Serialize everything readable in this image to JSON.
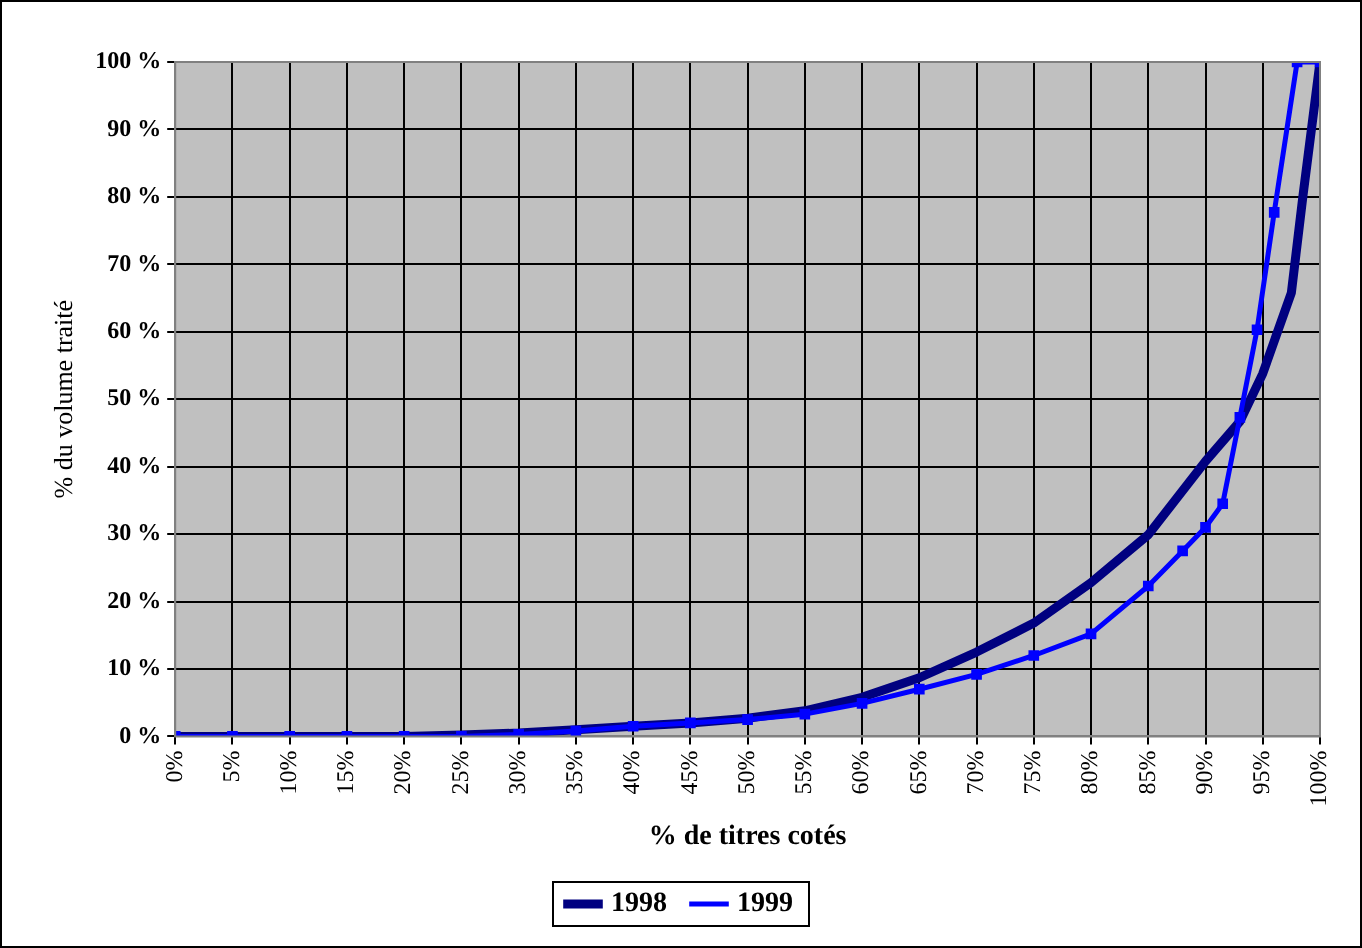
{
  "chart_data": {
    "type": "line",
    "xlabel": "% de titres cotés",
    "ylabel": "% du volume traité",
    "xlim": [
      0,
      100
    ],
    "ylim": [
      0,
      100
    ],
    "xticks": [
      {
        "value": 0,
        "label": "0%"
      },
      {
        "value": 5,
        "label": "5%"
      },
      {
        "value": 10,
        "label": "10%"
      },
      {
        "value": 15,
        "label": "15%"
      },
      {
        "value": 20,
        "label": "20%"
      },
      {
        "value": 25,
        "label": "25%"
      },
      {
        "value": 30,
        "label": "30%"
      },
      {
        "value": 35,
        "label": "35%"
      },
      {
        "value": 40,
        "label": "40%"
      },
      {
        "value": 45,
        "label": "45%"
      },
      {
        "value": 50,
        "label": "50%"
      },
      {
        "value": 55,
        "label": "55%"
      },
      {
        "value": 60,
        "label": "60%"
      },
      {
        "value": 65,
        "label": "65%"
      },
      {
        "value": 70,
        "label": "70%"
      },
      {
        "value": 75,
        "label": "75%"
      },
      {
        "value": 80,
        "label": "80%"
      },
      {
        "value": 85,
        "label": "85%"
      },
      {
        "value": 90,
        "label": "90%"
      },
      {
        "value": 95,
        "label": "95%"
      },
      {
        "value": 100,
        "label": "100%"
      }
    ],
    "yticks": [
      {
        "value": 0,
        "label": "0 %"
      },
      {
        "value": 10,
        "label": "10 %"
      },
      {
        "value": 20,
        "label": "20 %"
      },
      {
        "value": 30,
        "label": "30 %"
      },
      {
        "value": 40,
        "label": "40 %"
      },
      {
        "value": 50,
        "label": "50 %"
      },
      {
        "value": 60,
        "label": "60 %"
      },
      {
        "value": 70,
        "label": "70 %"
      },
      {
        "value": 80,
        "label": "80 %"
      },
      {
        "value": 90,
        "label": "90 %"
      },
      {
        "value": 100,
        "label": "100 %"
      }
    ],
    "grid": true,
    "legend": "bottom",
    "line_style": "solid",
    "marker": "square",
    "series": [
      {
        "name": "1998",
        "color": "#000080",
        "marker": "none",
        "x": [
          0,
          5,
          10,
          15,
          20,
          25,
          30,
          35,
          40,
          45,
          50,
          55,
          60,
          65,
          70,
          75,
          80,
          85,
          90,
          93,
          95,
          97.5,
          98.5,
          100
        ],
        "values": [
          0,
          0,
          0,
          0,
          0,
          0.2,
          0.5,
          1,
          1.5,
          2,
          2.7,
          3.8,
          5.8,
          8.7,
          12.5,
          16.8,
          22.8,
          29.9,
          40.8,
          46.7,
          53.8,
          65.8,
          80,
          100
        ]
      },
      {
        "name": "1999",
        "color": "#0000ff",
        "x": [
          0,
          5,
          10,
          15,
          20,
          25,
          30,
          35,
          40,
          45,
          50,
          55,
          60,
          65,
          70,
          75,
          80,
          85,
          88,
          90,
          91.5,
          93,
          94.5,
          96,
          98,
          100
        ],
        "values": [
          0,
          0,
          0,
          0,
          0,
          0,
          0.3,
          0.8,
          1.5,
          2,
          2.5,
          3.3,
          4.9,
          7,
          9.2,
          12,
          15.2,
          22.3,
          27.5,
          31,
          34.5,
          47.3,
          60.3,
          77.7,
          100,
          100
        ]
      }
    ]
  }
}
